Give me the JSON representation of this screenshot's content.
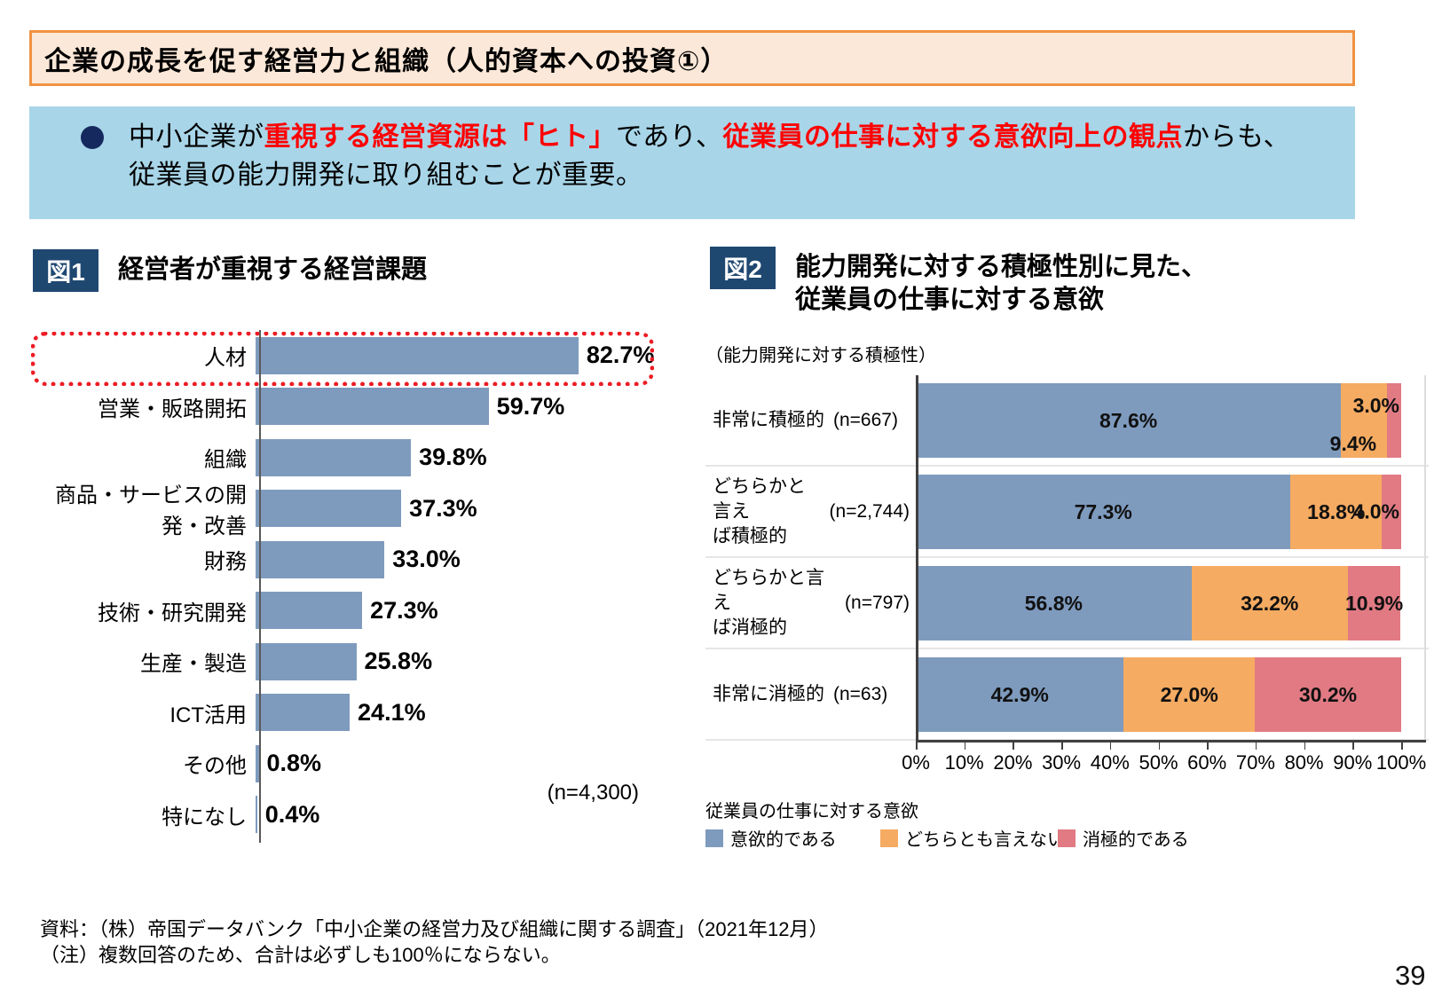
{
  "page": {
    "number": "39"
  },
  "header": {
    "title": "企業の成長を促す経営力と組織（人的資本への投資①）"
  },
  "summary": {
    "line1": {
      "s1": "中小企業が",
      "s2": "重視する経営資源は「ヒト」",
      "s3": "であり、",
      "s4": "従業員の仕事に対する意欲向上の観点",
      "s5": "からも、"
    },
    "line2": "従業員の能力開発に取り組むことが重要。"
  },
  "fig1": {
    "badge": "図1",
    "title": "経営者が重視する経営課題",
    "sample": "(n=4,300)"
  },
  "fig2": {
    "badge": "図2",
    "title_line1": "能力開発に対する積極性別に見た、",
    "title_line2": "従業員の仕事に対する意欲",
    "axis_note": "（能力開発に対する積極性）",
    "legend_title": "従業員の仕事に対する意欲"
  },
  "footer": {
    "source": "資料：（株）帝国データバンク「中小企業の経営力及び組織に関する調査」（2021年12月）",
    "note": "（注）複数回答のため、合計は必ずしも100％にならない。"
  },
  "colors": {
    "bar_blue": "#7e9bbe",
    "bar_orange": "#f5ab62",
    "bar_pink": "#e17a83",
    "badge_navy": "#1f4871",
    "header_fill": "#fce8d8",
    "header_border": "#f09242",
    "summary_blue": "#a8d5e8",
    "highlight_red": "#ec1c24",
    "em_red": "#fe0000"
  },
  "chart_data": [
    {
      "type": "bar",
      "orientation": "horizontal",
      "title": "経営者が重視する経営課題",
      "categories": [
        "人材",
        "営業・販路開拓",
        "組織",
        "商品・サービスの開発・改善",
        "財務",
        "技術・研究開発",
        "生産・製造",
        "ICT活用",
        "その他",
        "特になし"
      ],
      "values": [
        82.7,
        59.7,
        39.8,
        37.3,
        33.0,
        27.3,
        25.8,
        24.1,
        0.8,
        0.4
      ],
      "labels": [
        "82.7%",
        "59.7%",
        "39.8%",
        "37.3%",
        "33.0%",
        "27.3%",
        "25.8%",
        "24.1%",
        "0.8%",
        "0.4%"
      ],
      "xlim": [
        0,
        100
      ],
      "grid": false,
      "sample_size": "(n=4,300)",
      "bar_color": "#7e9bbe",
      "highlight_category": "人材"
    },
    {
      "type": "bar",
      "subtype": "stacked-horizontal",
      "title": "能力開発に対する積極性別に見た、従業員の仕事に対する意欲",
      "axis_note": "（能力開発に対する積極性）",
      "categories": [
        "非常に積極的",
        "どちらかと言え\nば積極的",
        "どちらかと言え\nば消極的",
        "非常に消極的"
      ],
      "sample_sizes": [
        "(n=667)",
        "(n=2,744)",
        "(n=797)",
        "(n=63)"
      ],
      "series": [
        {
          "name": "意欲的である",
          "color": "#7e9bbe",
          "values": [
            87.6,
            77.3,
            56.8,
            42.9
          ],
          "labels": [
            "87.6%",
            "77.3%",
            "56.8%",
            "42.9%"
          ]
        },
        {
          "name": "どちらとも言えない",
          "color": "#f5ab62",
          "values": [
            9.4,
            18.8,
            32.2,
            27.0
          ],
          "labels": [
            "9.4%",
            "18.8%",
            "32.2%",
            "27.0%"
          ]
        },
        {
          "name": "消極的である",
          "color": "#e17a83",
          "values": [
            3.0,
            4.0,
            10.9,
            30.2
          ],
          "labels": [
            "3.0%",
            "4.0%",
            "10.9%",
            "30.2%"
          ]
        }
      ],
      "x_ticks": [
        "0%",
        "10%",
        "20%",
        "30%",
        "40%",
        "50%",
        "60%",
        "70%",
        "80%",
        "90%",
        "100%"
      ],
      "xlim": [
        0,
        100
      ],
      "legend_position": "bottom"
    }
  ]
}
